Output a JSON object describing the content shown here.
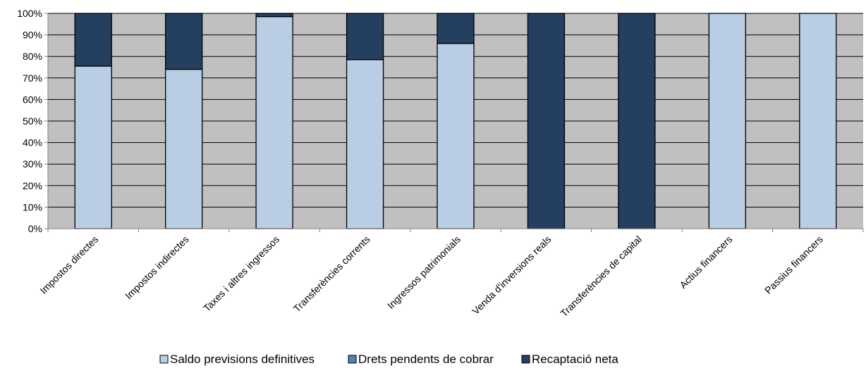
{
  "chart_data": {
    "type": "bar",
    "stacked": true,
    "percent_stacked": true,
    "title": "",
    "xlabel": "",
    "ylabel": "",
    "ylim": [
      0,
      100
    ],
    "y_ticks": [
      "0%",
      "10%",
      "20%",
      "30%",
      "40%",
      "50%",
      "60%",
      "70%",
      "80%",
      "90%",
      "100%"
    ],
    "grid": true,
    "legend_position": "bottom",
    "plot_background": "#c0c0c0",
    "categories": [
      "Impostos directes",
      "Impostos indirectes",
      "Taxes i altres ingressos",
      "Transferències corrents",
      "Ingressos patrimonials",
      "Venda d'inversions reals",
      "Transferències de capital",
      "Actius financers",
      "Passius financers"
    ],
    "series": [
      {
        "name": "Saldo previsions definitives",
        "color": "#b9cde5",
        "values": [
          75.5,
          74,
          98.5,
          78.5,
          86,
          0,
          0,
          100,
          100
        ]
      },
      {
        "name": "Drets pendents de cobrar",
        "color": "#4f81bd",
        "values": [
          0,
          0,
          0,
          0,
          0,
          0,
          0,
          0,
          0
        ]
      },
      {
        "name": "Recaptació neta",
        "color": "#243f60",
        "values": [
          24.5,
          26,
          1.5,
          21.5,
          14,
          100,
          100,
          0,
          0
        ]
      }
    ]
  }
}
